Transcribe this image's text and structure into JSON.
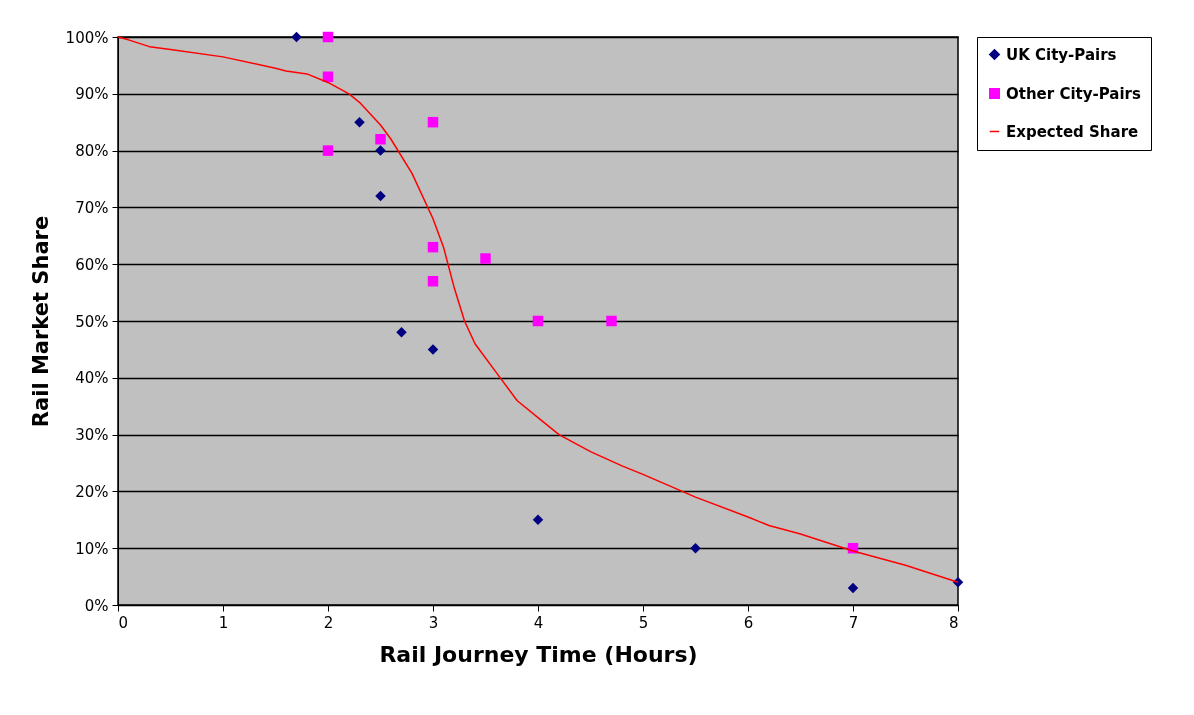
{
  "chart_data": {
    "type": "scatter",
    "xlabel": "Rail Journey Time (Hours)",
    "ylabel": "Rail Market Share",
    "xlim": [
      0,
      8
    ],
    "xticks": [
      0,
      1,
      2,
      3,
      4,
      5,
      6,
      7,
      8
    ],
    "ylim": [
      0,
      100
    ],
    "yticks": [
      {
        "value": 0,
        "label": "0%"
      },
      {
        "value": 10,
        "label": "10%"
      },
      {
        "value": 20,
        "label": "20%"
      },
      {
        "value": 30,
        "label": "30%"
      },
      {
        "value": 40,
        "label": "40%"
      },
      {
        "value": 50,
        "label": "50%"
      },
      {
        "value": 60,
        "label": "60%"
      },
      {
        "value": 70,
        "label": "70%"
      },
      {
        "value": 80,
        "label": "80%"
      },
      {
        "value": 90,
        "label": "90%"
      },
      {
        "value": 100,
        "label": "100%"
      }
    ],
    "grid": "y",
    "legend": "right",
    "series": [
      {
        "name": "UK City-Pairs",
        "color": "#000080",
        "marker": "diamond",
        "x": [
          1.7,
          2.3,
          2.5,
          2.5,
          2.7,
          3,
          4,
          5.5,
          7,
          8
        ],
        "values": [
          100,
          85,
          80,
          72,
          48,
          45,
          15,
          10,
          3,
          4
        ]
      },
      {
        "name": "Other City-Pairs",
        "color": "#ff00ff",
        "marker": "square",
        "x": [
          2,
          2,
          2,
          2.5,
          3,
          3,
          3,
          3.5,
          4,
          4.7,
          7
        ],
        "values": [
          100,
          93,
          80,
          82,
          85,
          63,
          57,
          61,
          50,
          50,
          10
        ]
      },
      {
        "name": "Expected Share",
        "type": "line",
        "color": "#ff0000",
        "marker": "none",
        "x": [
          0,
          0.1,
          0.3,
          0.5,
          1,
          1.5,
          1.6,
          1.8,
          2,
          2.2,
          2.3,
          2.5,
          2.6,
          2.8,
          3,
          3.1,
          3.2,
          3.3,
          3.4,
          3.6,
          3.8,
          4,
          4.2,
          4.5,
          4.8,
          5,
          5.5,
          6,
          6.2,
          6.5,
          7,
          7.5,
          8
        ],
        "values": [
          100,
          99.5,
          98.3,
          97.8,
          96.5,
          94.5,
          94,
          93.5,
          92,
          90,
          88.5,
          84.5,
          82,
          76,
          68,
          63,
          56,
          50,
          46,
          41,
          36,
          33,
          30,
          27,
          24.5,
          23,
          19,
          15.5,
          14,
          12.5,
          9.5,
          7,
          4
        ]
      }
    ]
  }
}
